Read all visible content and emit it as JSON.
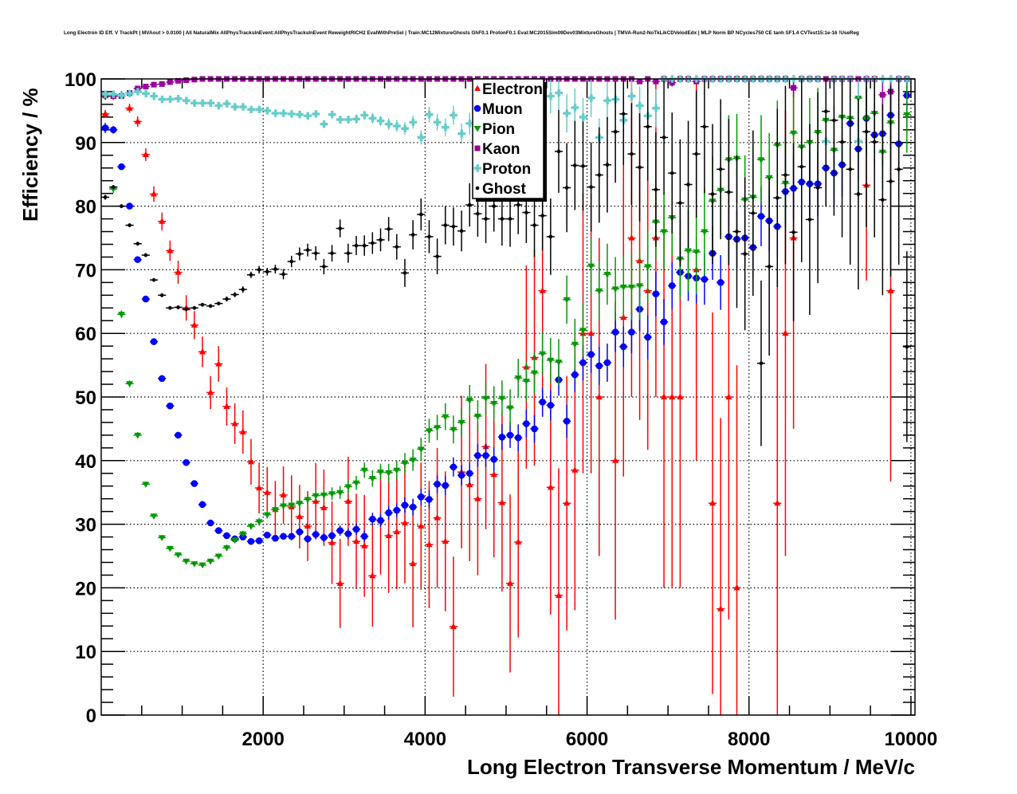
{
  "chart_data": {
    "type": "scatter",
    "title": "Long Electron ID Eff. V TrackPt | MVAout > 0.0100 | All NaturalMix AllPhysTracksInEvent:AllPhysTracksInEvent ReweightRICH2 EvalWithPreSel | Train:MC12MixtureGhosts GhF0.1 ProtonF0.1 Eval:MC2015Sim09Dev03MixtureGhosts | TMVA-Run2-NoTkLikCDVelodEdx | MLP Norm BP NCycles750 CE tanh SF1.4 CVTest15:1e-16 !UseReg",
    "xlabel": "Long Electron Transverse Momentum / MeV/c",
    "ylabel": "Efficiency / %",
    "xlim": [
      0,
      10050
    ],
    "ylim": [
      0,
      100
    ],
    "x_ticks": [
      "2000",
      "4000",
      "6000",
      "8000",
      "10000"
    ],
    "y_ticks": [
      "0",
      "10",
      "20",
      "30",
      "40",
      "50",
      "60",
      "70",
      "80",
      "90",
      "100"
    ],
    "grid": true,
    "legend_position": "top-center",
    "bin_start": 0,
    "bin_width": 100,
    "series": [
      {
        "name": "Electron",
        "color": "#ff0000",
        "marker": "triangle-up",
        "values": [
          94.5,
          97.3,
          97.5,
          95.4,
          93.3,
          88.1,
          81.9,
          77.6,
          73,
          69.6,
          64,
          61.3,
          57.1,
          50.7,
          55.2,
          48.5,
          45.8,
          44.5,
          39.8,
          35.7,
          35,
          32.3,
          34.6,
          32.7,
          31.2,
          29.7,
          33.6,
          32.6,
          27.1,
          20.7,
          33.6,
          27.3,
          26.6,
          21.9,
          30.6,
          28.2,
          28.8,
          30.2,
          23.8,
          29.7,
          26.8,
          31,
          27.3,
          13.9,
          38.2,
          36.2,
          34,
          42.2,
          37.8,
          33.4,
          20.7,
          27.2,
          54.7,
          56.2,
          66.7,
          35.8,
          18.8,
          33.3,
          38.5,
          60,
          60,
          50,
          null,
          40,
          62.5,
          75,
          71.4,
          66.7,
          75,
          50,
          50,
          50,
          null,
          70,
          null,
          33.3,
          16.7,
          50,
          20,
          null,
          null,
          null,
          null,
          33.3,
          60,
          75,
          null,
          null,
          null,
          null,
          null,
          null,
          null,
          null,
          83.3,
          null,
          null,
          66.7,
          null,
          null
        ],
        "errors": [
          0.6,
          0.6,
          0.6,
          0.7,
          0.8,
          1,
          1.2,
          1.4,
          1.6,
          1.8,
          2,
          2.2,
          2.4,
          2.6,
          2.8,
          3,
          3.2,
          3.4,
          3.6,
          4,
          4,
          4.5,
          4.5,
          5,
          5,
          5.5,
          6,
          6,
          6.5,
          7,
          7,
          7.5,
          8,
          8,
          8.5,
          9,
          9,
          9.5,
          10,
          10,
          10,
          11,
          11,
          11,
          12,
          12,
          12,
          13,
          13,
          14,
          14,
          15,
          16,
          17,
          18,
          20,
          20,
          20,
          22,
          22,
          22,
          25,
          null,
          25,
          25,
          25,
          25,
          25,
          25,
          30,
          30,
          30,
          null,
          30,
          null,
          30,
          30,
          35,
          35,
          null,
          null,
          null,
          null,
          35,
          35,
          30,
          null,
          null,
          null,
          null,
          null,
          null,
          null,
          null,
          15,
          null,
          null,
          30,
          null,
          null
        ]
      },
      {
        "name": "Muon",
        "color": "#0000ff",
        "marker": "circle",
        "values": [
          92.3,
          92,
          86.2,
          80,
          71.6,
          65.4,
          58.7,
          52.9,
          48.6,
          44,
          39.7,
          36.4,
          33.1,
          30.2,
          29,
          28.2,
          27.7,
          28,
          27.3,
          27.4,
          28.3,
          27.8,
          28.1,
          28.1,
          28.8,
          27.7,
          28.4,
          27.9,
          28.2,
          29,
          28.5,
          29.2,
          28.1,
          30.8,
          30.6,
          31.8,
          32.2,
          33,
          32.7,
          34.3,
          33.9,
          36.3,
          36.1,
          39,
          37.7,
          38,
          40.8,
          40.8,
          40.2,
          43.7,
          44,
          43.6,
          45.8,
          45,
          49.2,
          48.7,
          52.7,
          46.2,
          53.5,
          55.4,
          56.7,
          54.9,
          55.4,
          60.2,
          57.9,
          60.2,
          63.8,
          59.4,
          66.2,
          61.8,
          67.5,
          69.6,
          69,
          68.7,
          68.5,
          72.6,
          68,
          75.2,
          74.8,
          75,
          73.5,
          78.4,
          77.7,
          76.8,
          82.3,
          82.8,
          83.8,
          83.5,
          83.5,
          86,
          85.2,
          86.5,
          93,
          89,
          93.8,
          91.2,
          91.4,
          94.3,
          89.8,
          97.4
        ],
        "errors": [
          0.8,
          0.6,
          0.5,
          0.5,
          0.5,
          0.5,
          0.5,
          0.4,
          0.4,
          0.4,
          0.4,
          0.4,
          0.4,
          0.4,
          0.4,
          0.4,
          0.4,
          0.4,
          0.5,
          0.5,
          0.5,
          0.5,
          0.5,
          0.6,
          0.6,
          0.6,
          0.7,
          0.7,
          0.7,
          0.8,
          0.8,
          0.9,
          0.9,
          1,
          1,
          1.1,
          1.1,
          1.2,
          1.3,
          1.3,
          1.4,
          1.4,
          1.5,
          1.5,
          1.6,
          1.7,
          1.8,
          1.8,
          1.9,
          2,
          2,
          2.1,
          2.2,
          2.2,
          2.3,
          2.4,
          2.5,
          2.6,
          2.7,
          2.8,
          2.9,
          3,
          3,
          3.1,
          3.2,
          3.3,
          3.4,
          3.5,
          3.5,
          3.6,
          3.7,
          3.8,
          3.9,
          4,
          4,
          4.2,
          4.3,
          4.4,
          4.5,
          4.5,
          4.6,
          4.7,
          4.8,
          4.9,
          5,
          5,
          5,
          5,
          5,
          5,
          5,
          5,
          5,
          5,
          5,
          5,
          5,
          5,
          5,
          5
        ]
      },
      {
        "name": "Pion",
        "color": "#009900",
        "marker": "triangle-down",
        "values": [
          97.2,
          82.7,
          63,
          52.1,
          44,
          36.3,
          31.3,
          27.9,
          26.2,
          25.2,
          24.2,
          23.8,
          23.6,
          24.2,
          25,
          26.3,
          27.5,
          28.5,
          29.7,
          30.4,
          31.5,
          32.3,
          32.9,
          33,
          33.3,
          33.9,
          34.5,
          34.6,
          34.8,
          35,
          35.9,
          36.5,
          38.5,
          37.2,
          38.2,
          38.1,
          38.5,
          39.6,
          40.1,
          41.8,
          44.7,
          45.2,
          46.9,
          44.9,
          46,
          49.5,
          47,
          49.8,
          49,
          49.8,
          48.3,
          53,
          52.5,
          53.8,
          56.8,
          55.8,
          55.5,
          65.3,
          58.3,
          60.5,
          70.6,
          66.7,
          69.3,
          67,
          67.3,
          67.3,
          67.5,
          70.5,
          77.5,
          76,
          78.2,
          71.7,
          73,
          72.8,
          76,
          80.8,
          82.5,
          87.3,
          87.5,
          81,
          81.4,
          87.3,
          84.5,
          89.6,
          83.6,
          91.5,
          89.3,
          90,
          91.6,
          93.5,
          88.8,
          94,
          93.8,
          97,
          93.8,
          94.6,
          88.5,
          93.1,
          null,
          94.4
        ],
        "errors": [
          0.5,
          0.6,
          0.6,
          0.5,
          0.5,
          0.4,
          0.4,
          0.4,
          0.4,
          0.4,
          0.4,
          0.4,
          0.4,
          0.4,
          0.4,
          0.5,
          0.5,
          0.5,
          0.5,
          0.6,
          0.6,
          0.6,
          0.7,
          0.7,
          0.8,
          0.8,
          0.9,
          0.9,
          1,
          1,
          1.1,
          1.1,
          1.2,
          1.3,
          1.3,
          1.4,
          1.5,
          1.6,
          1.7,
          1.8,
          1.9,
          2,
          2.1,
          2.2,
          2.3,
          2.4,
          2.5,
          2.6,
          2.7,
          2.8,
          2.9,
          3,
          3.1,
          3.2,
          3.3,
          3.5,
          3.6,
          3.8,
          4,
          4.2,
          4.4,
          4.6,
          4.8,
          5,
          5,
          5.2,
          5.4,
          5.6,
          5.8,
          6,
          6,
          6.2,
          6.4,
          6.6,
          6.8,
          7,
          7,
          7,
          7,
          7,
          7,
          7,
          7,
          7,
          7,
          7,
          7,
          7,
          7,
          7,
          7,
          7,
          7,
          6,
          6,
          6,
          6,
          6,
          null,
          6
        ]
      },
      {
        "name": "Kaon",
        "color": "#990099",
        "marker": "square",
        "values": [
          97.4,
          97.3,
          97.3,
          97.8,
          98.5,
          98.8,
          99.1,
          99.2,
          99.5,
          99.7,
          99.8,
          99.9,
          100,
          100,
          100,
          100,
          100,
          100,
          100,
          100,
          100,
          100,
          100,
          100,
          100,
          100,
          100,
          100,
          100,
          100,
          100,
          100,
          100,
          100,
          100,
          100,
          100,
          100,
          100,
          100,
          100,
          100,
          100,
          100,
          100,
          100,
          100,
          100,
          100,
          100,
          100,
          100,
          100,
          100,
          100,
          100,
          100,
          100,
          100,
          100,
          100,
          100,
          100,
          100,
          100,
          100,
          99.6,
          100,
          99.6,
          100,
          99.4,
          100,
          100,
          99.6,
          100,
          100,
          100,
          100,
          100,
          100,
          100,
          100,
          100,
          100,
          100,
          98.6,
          100,
          100,
          100,
          100,
          100,
          100,
          100,
          100,
          100,
          100,
          97.5,
          98,
          100,
          100
        ],
        "errors": [
          0.2,
          0.2,
          0.2,
          0.2,
          0.2,
          0.2,
          0.1,
          0.1,
          0.1,
          0.1,
          0.1,
          0.1,
          0.1,
          0.1,
          0.1,
          0.1,
          0.1,
          0.1,
          0.1,
          0.1,
          0.1,
          0.1,
          0.1,
          0.1,
          0.1,
          0.1,
          0.1,
          0.1,
          0.1,
          0.1,
          0.1,
          0.1,
          0.1,
          0.1,
          0.1,
          0.1,
          0.1,
          0.1,
          0.1,
          0.1,
          0.1,
          0.1,
          0.1,
          0.1,
          0.1,
          0.1,
          0.1,
          0.1,
          0.1,
          0.1,
          0.1,
          0.1,
          0.1,
          0.1,
          0.1,
          0.1,
          0.1,
          0.1,
          0.1,
          0.1,
          0.1,
          0.1,
          0.1,
          0.1,
          0.1,
          0.1,
          0.4,
          0.1,
          0.4,
          0.1,
          0.6,
          0.1,
          0.1,
          0.4,
          0.1,
          0.1,
          0.1,
          0.1,
          0.1,
          0.1,
          0.1,
          0.1,
          0.1,
          0.1,
          0.1,
          1.4,
          0.1,
          0.1,
          0.1,
          0.1,
          0.1,
          0.1,
          0.1,
          0.1,
          0.1,
          0.1,
          2.5,
          2,
          0.1,
          0.1
        ]
      },
      {
        "name": "Proton",
        "color": "#66cccc",
        "marker": "cross",
        "values": [
          97.6,
          97.6,
          97.4,
          97.7,
          98,
          97.7,
          97.3,
          96.8,
          96.8,
          96.9,
          96.6,
          96.2,
          96.2,
          96.2,
          95.8,
          96.1,
          95.6,
          95.6,
          95.2,
          95.2,
          95,
          94.6,
          94.6,
          94.5,
          94.4,
          94.2,
          94.5,
          92.9,
          94.4,
          93.6,
          93.6,
          93.7,
          94.3,
          93.8,
          93.4,
          92.9,
          92.6,
          92.2,
          93.2,
          90.8,
          94.4,
          93.2,
          92.4,
          94.3,
          91.4,
          93,
          94,
          95.4,
          92.3,
          93.7,
          93,
          93.5,
          95,
          96,
          95.3,
          97.3,
          97.8,
          94.6,
          95.5,
          94,
          97,
          90.8,
          96.6,
          96.8,
          93.5,
          97.3,
          95.8,
          94.2,
          95.4,
          100,
          100,
          100,
          100,
          100,
          100,
          100,
          100,
          100,
          100,
          100,
          100,
          100,
          100,
          100,
          100,
          100,
          100,
          100,
          100,
          90.2,
          100,
          100,
          100,
          90.2,
          100,
          100,
          100,
          100,
          100,
          100
        ],
        "errors": [
          0.3,
          0.3,
          0.3,
          0.3,
          0.3,
          0.3,
          0.3,
          0.3,
          0.3,
          0.3,
          0.3,
          0.3,
          0.3,
          0.3,
          0.3,
          0.3,
          0.3,
          0.3,
          0.3,
          0.3,
          0.4,
          0.4,
          0.4,
          0.4,
          0.4,
          0.5,
          0.5,
          0.5,
          0.6,
          0.6,
          0.6,
          0.7,
          0.7,
          0.8,
          0.8,
          0.9,
          0.9,
          1,
          1,
          1.1,
          1.2,
          1.3,
          1.4,
          1.5,
          1.6,
          1.7,
          1.8,
          1.9,
          2,
          2.1,
          2.2,
          2.3,
          2.4,
          2.5,
          2.6,
          2.7,
          2.8,
          3,
          3,
          3,
          3,
          3,
          3,
          3,
          3,
          3,
          3,
          3,
          3,
          0.5,
          0.5,
          0.5,
          0.5,
          0.5,
          0.5,
          0.5,
          0.5,
          0.5,
          0.5,
          0.5,
          0.5,
          0.5,
          0.5,
          0.5,
          0.5,
          0.5,
          0.5,
          0.5,
          0.5,
          9.8,
          0.5,
          0.5,
          0.5,
          9.8,
          0.5,
          0.5,
          0.5,
          0.5,
          0.5,
          0.5
        ]
      },
      {
        "name": "Ghost",
        "color": "#000000",
        "marker": "dot",
        "values": [
          81.4,
          83,
          80,
          77,
          74.1,
          72.3,
          68.4,
          66,
          64,
          64.1,
          63.8,
          64,
          64.5,
          64.3,
          64.7,
          65.4,
          66.1,
          66.9,
          69.2,
          70,
          69.7,
          70.1,
          69.3,
          71.3,
          72.5,
          73.1,
          72.6,
          70.5,
          72.6,
          76.5,
          72.6,
          73.8,
          73.8,
          74.2,
          74.7,
          76.4,
          73.6,
          69.5,
          75.5,
          78.7,
          75.2,
          72.1,
          77,
          76.8,
          76.1,
          80.2,
          78.8,
          78,
          80,
          78,
          78,
          80.2,
          79,
          77,
          78.5,
          75.2,
          88.6,
          82.9,
          86.4,
          86.3,
          83,
          84.9,
          86.5,
          91.7,
          94.5,
          88.2,
          86.1,
          92.5,
          82.6,
          90.8,
          85.2,
          80.5,
          83.4,
          88.2,
          92.5,
          81.9,
          85.8,
          82.2,
          76,
          72.5,
          78.9,
          55.3,
          70.5,
          81.3,
          84.9,
          75.9,
          86.2,
          77.9,
          82.9,
          94.9,
          93.5,
          90.1,
          85.8,
          81.9,
          91.7,
          90.1,
          81,
          83.9,
          85.8,
          57.9
        ],
        "errors": [
          0.4,
          0.3,
          0.3,
          0.3,
          0.3,
          0.3,
          0.3,
          0.3,
          0.3,
          0.3,
          0.3,
          0.3,
          0.3,
          0.3,
          0.3,
          0.4,
          0.4,
          0.5,
          0.5,
          0.6,
          0.6,
          0.7,
          0.8,
          0.9,
          1,
          1,
          1.1,
          1.2,
          1.3,
          1.4,
          1.5,
          1.5,
          1.6,
          1.7,
          1.8,
          1.9,
          2,
          2.2,
          2.3,
          2.5,
          2.6,
          2.8,
          3,
          3,
          3.2,
          3.4,
          3.6,
          3.8,
          4,
          4.2,
          4.4,
          4.6,
          4.8,
          5,
          5.5,
          6,
          6.5,
          7,
          7,
          7,
          7,
          7.5,
          7.5,
          8,
          8,
          8,
          8.5,
          8.5,
          9,
          9,
          9.5,
          10,
          10,
          10,
          10.5,
          11,
          11,
          11.5,
          12,
          12,
          13,
          13,
          14,
          14,
          14,
          14,
          15,
          15,
          15,
          15,
          15,
          15,
          15,
          15,
          15,
          15,
          15,
          15,
          15,
          15
        ]
      }
    ]
  }
}
